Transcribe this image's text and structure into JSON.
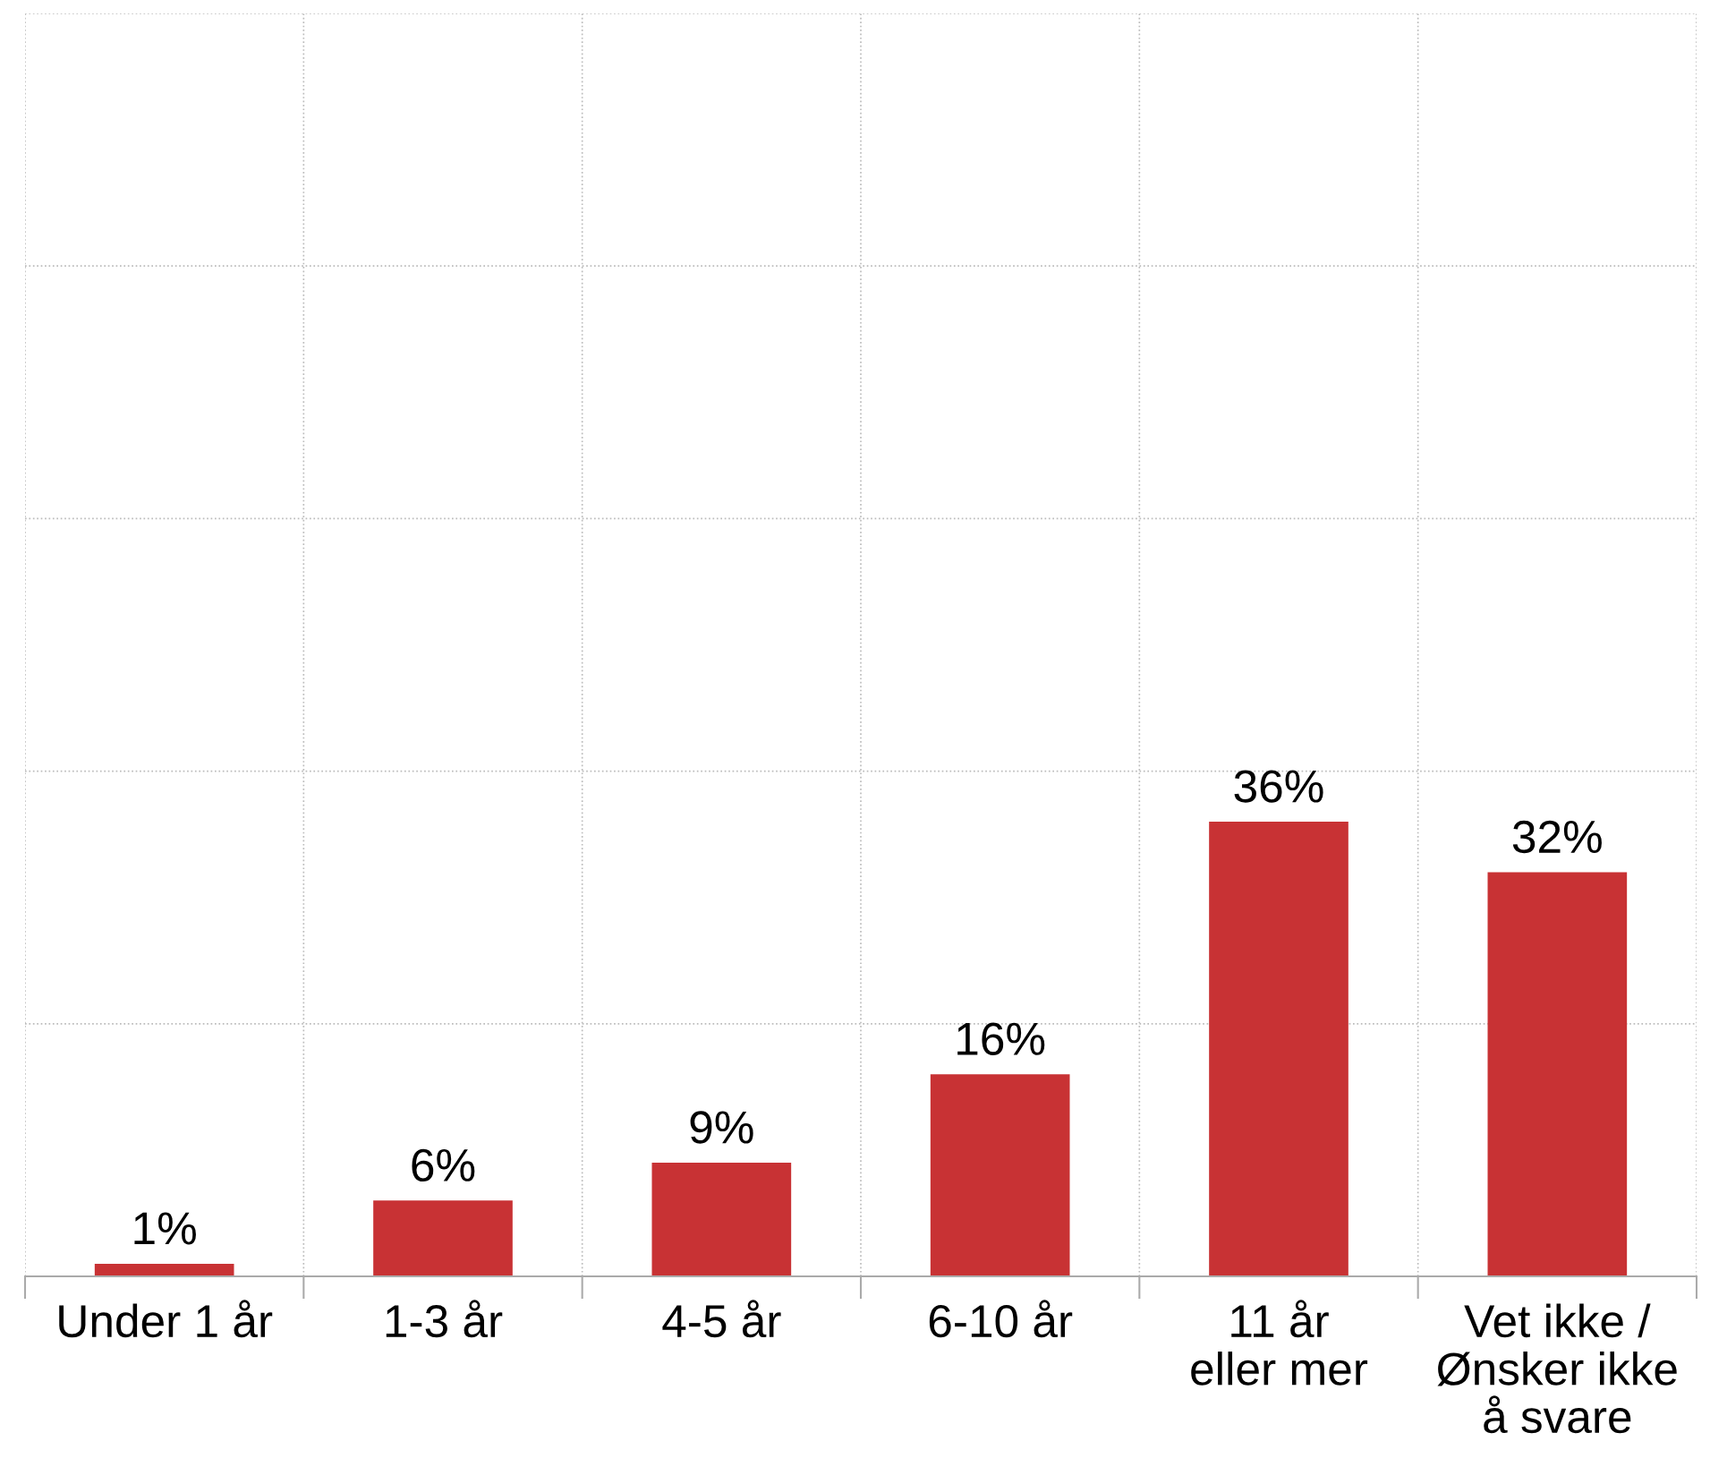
{
  "chart_data": {
    "type": "bar",
    "categories": [
      "Under 1 år",
      "1-3 år",
      "4-5 år",
      "6-10 år",
      "11 år\neller mer",
      "Vet ikke /\nØnsker ikke\nå svare"
    ],
    "values": [
      1,
      6,
      9,
      16,
      36,
      32
    ],
    "value_labels": [
      "1%",
      "6%",
      "9%",
      "16%",
      "36%",
      "32%"
    ],
    "color": "#c83234",
    "ylim": [
      0,
      100
    ],
    "yticks": [
      {
        "value": 0,
        "label": null
      },
      {
        "value": 20,
        "label": null
      },
      {
        "value": 40,
        "label": null
      },
      {
        "value": 60,
        "label": null
      },
      {
        "value": 80,
        "label": null
      },
      {
        "value": 100,
        "label": null
      }
    ],
    "tick_labels": "x",
    "grid": true
  }
}
